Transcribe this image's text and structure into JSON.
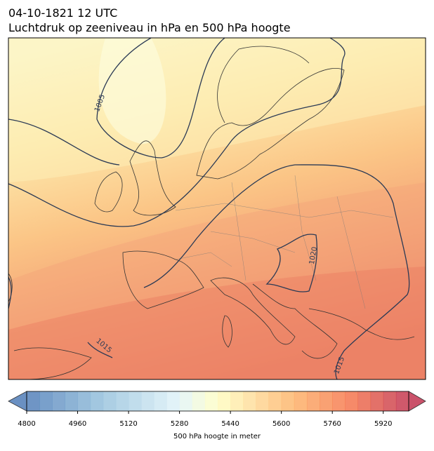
{
  "title": "04-10-1821 12 UTC",
  "subtitle": "Luchtdruk op zeeniveau in hPa en 500 hPa hoogte",
  "isobar_labels": [
    "1005",
    "1020",
    "1015",
    "1015"
  ],
  "colorbar": {
    "label": "500 hPa hoogte in meter",
    "lim": [
      4800,
      6000
    ],
    "ticks": [
      4800,
      4960,
      5120,
      5280,
      5440,
      5600,
      5760,
      5920
    ]
  }
}
